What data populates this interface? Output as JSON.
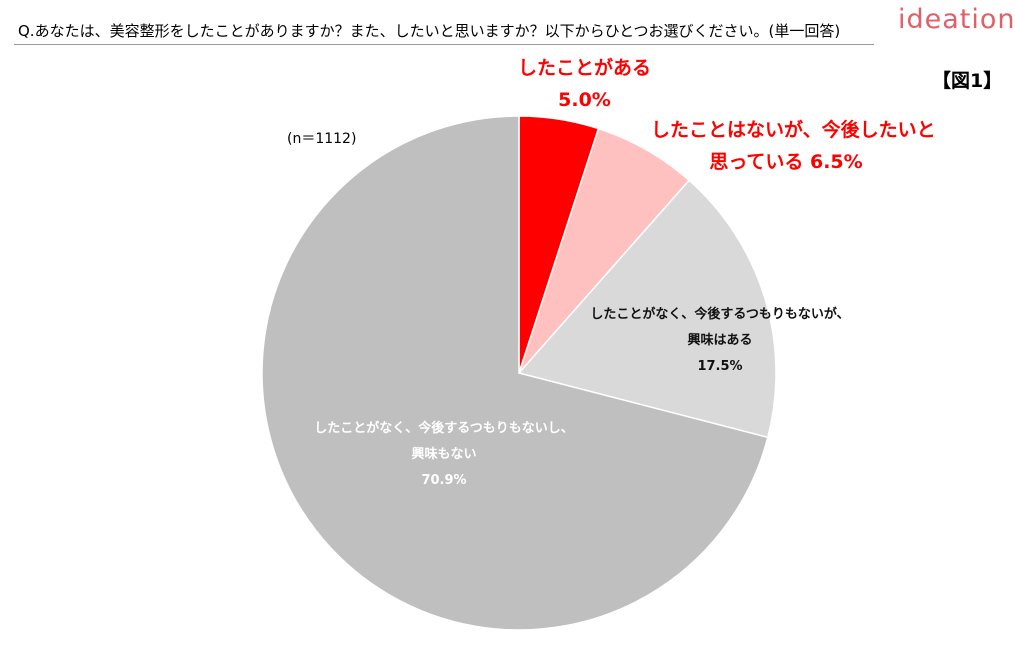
{
  "header": {
    "question": "Q.あなたは、美容整形をしたことがありますか？また、したいと思いますか？以下からひとつお選びください。(単一回答)",
    "logo": "ideation",
    "figure_tag": "【図1】"
  },
  "chart_data": {
    "type": "pie",
    "title": "",
    "n_label": "(n＝1112)",
    "start": "12 o'clock",
    "direction": "clockwise",
    "slices": [
      {
        "label": "したことがある",
        "value": 5.0,
        "value_label": "5.0%",
        "color": "#ff0000"
      },
      {
        "label": "したことはないが、今後したいと思っている",
        "value": 6.5,
        "value_label": "6.5%",
        "color": "#ffc0c0"
      },
      {
        "label": "したことがなく、今後するつもりもないが、興味はある",
        "value": 17.5,
        "value_label": "17.5%",
        "color": "#d9d9d9"
      },
      {
        "label": "したことがなく、今後するつもりもないし、興味もない",
        "value": 70.9,
        "value_label": "70.9%",
        "color": "#bfbfbf"
      }
    ],
    "labels": {
      "s1_line1": "したことがある",
      "s1_line2": "5.0%",
      "s2_line1": "したことはないが、今後したいと",
      "s2_line2": "思っている 6.5%",
      "s3_line1": "したことがなく、今後するつもりもないが、",
      "s3_line2": "興味はある",
      "s3_line3": "17.5%",
      "s4_line1": "したことがなく、今後するつもりもないし、",
      "s4_line2": "興味もない",
      "s4_line3": "70.9%"
    }
  }
}
